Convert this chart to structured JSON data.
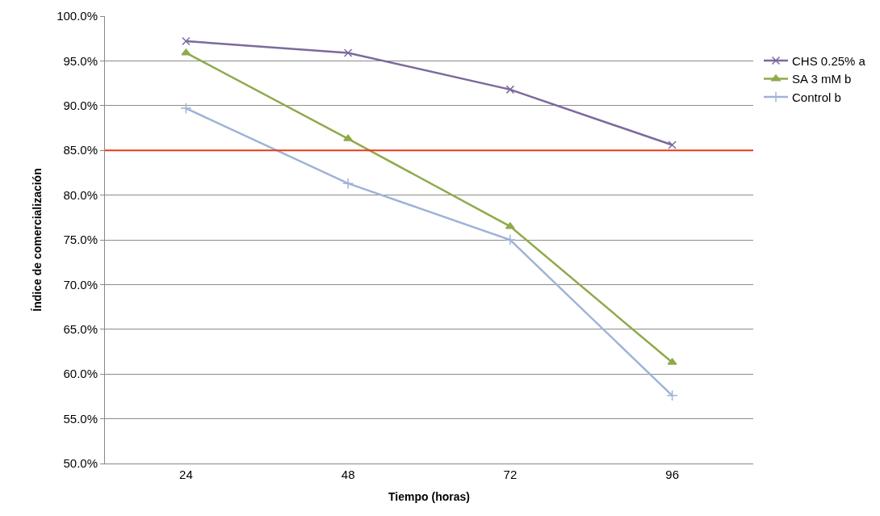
{
  "chart_data": {
    "type": "line",
    "xlabel": "Tiempo (horas)",
    "ylabel": "Índice de comercialización",
    "categories": [
      "24",
      "48",
      "72",
      "96"
    ],
    "series": [
      {
        "name": "CHS 0.25% a",
        "color": "#7b6a9c",
        "marker": "cross",
        "values": [
          97.2,
          95.9,
          91.8,
          85.6
        ]
      },
      {
        "name": "SA 3 mM b",
        "color": "#8faa4c",
        "marker": "triangle",
        "values": [
          95.9,
          86.3,
          76.5,
          61.3
        ]
      },
      {
        "name": "Control b",
        "color": "#9fb3d6",
        "marker": "plus",
        "values": [
          89.7,
          81.3,
          75.0,
          57.6
        ]
      }
    ],
    "ylim": [
      50,
      100
    ],
    "yticks": [
      {
        "value": 50,
        "label": "50.0%"
      },
      {
        "value": 55,
        "label": "55.0%"
      },
      {
        "value": 60,
        "label": "60.0%"
      },
      {
        "value": 65,
        "label": "65.0%"
      },
      {
        "value": 70,
        "label": "70.0%"
      },
      {
        "value": 75,
        "label": "75.0%"
      },
      {
        "value": 80,
        "label": "80.0%"
      },
      {
        "value": 85,
        "label": "85.0%"
      },
      {
        "value": 90,
        "label": "90.0%"
      },
      {
        "value": 95,
        "label": "95.0%"
      },
      {
        "value": 100,
        "label": "100.0%"
      }
    ],
    "ref_lines": [
      {
        "axis": "y",
        "value": 85,
        "color": "#e8391a"
      }
    ],
    "grid": "y",
    "legend": "top right",
    "line_style": "solid"
  }
}
